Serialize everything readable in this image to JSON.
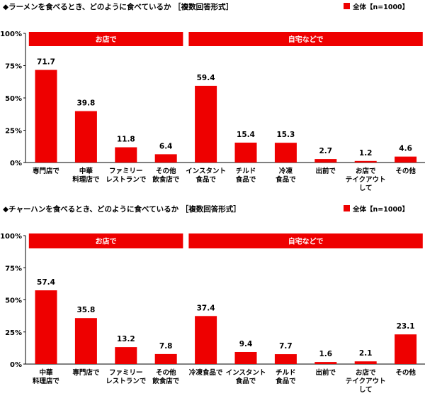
{
  "colors": {
    "bar": "#ee0000",
    "group_band": "#ee0000",
    "axis": "#000000"
  },
  "chart_data": [
    {
      "type": "bar",
      "title": "◆ラーメンを食べるとき、どのように食べているか ［複数回答形式］",
      "legend": "全体【n=1000】",
      "ylim": [
        0,
        100
      ],
      "yticks": [
        "0%",
        "25%",
        "50%",
        "75%",
        "100%"
      ],
      "groups": [
        {
          "label": "お店で",
          "start": 0,
          "count": 4
        },
        {
          "label": "自宅などで",
          "start": 4,
          "count": 6
        }
      ],
      "categories": [
        [
          "専門店で"
        ],
        [
          "中華",
          "料理店で"
        ],
        [
          "ファミリー",
          "レストランで"
        ],
        [
          "その他",
          "飲食店で"
        ],
        [
          "インスタント",
          "食品で"
        ],
        [
          "チルド",
          "食品で"
        ],
        [
          "冷凍",
          "食品で"
        ],
        [
          "出前で"
        ],
        [
          "お店で",
          "テイクアウト",
          "して"
        ],
        [
          "その他"
        ]
      ],
      "values": [
        71.7,
        39.8,
        11.8,
        6.4,
        59.4,
        15.4,
        15.3,
        2.7,
        1.2,
        4.6
      ]
    },
    {
      "type": "bar",
      "title": "◆チャーハンを食べるとき、どのように食べているか ［複数回答形式］",
      "legend": "全体【n=1000】",
      "ylim": [
        0,
        100
      ],
      "yticks": [
        "0%",
        "25%",
        "50%",
        "75%",
        "100%"
      ],
      "groups": [
        {
          "label": "お店で",
          "start": 0,
          "count": 4
        },
        {
          "label": "自宅などで",
          "start": 4,
          "count": 6
        }
      ],
      "categories": [
        [
          "中華",
          "料理店で"
        ],
        [
          "専門店で"
        ],
        [
          "ファミリー",
          "レストランで"
        ],
        [
          "その他",
          "飲食店で"
        ],
        [
          "冷凍食品で"
        ],
        [
          "インスタント",
          "食品で"
        ],
        [
          "チルド",
          "食品で"
        ],
        [
          "出前で"
        ],
        [
          "お店で",
          "テイクアウト",
          "して"
        ],
        [
          "その他"
        ]
      ],
      "values": [
        57.4,
        35.8,
        13.2,
        7.8,
        37.4,
        9.4,
        7.7,
        1.6,
        2.1,
        23.1
      ]
    }
  ]
}
